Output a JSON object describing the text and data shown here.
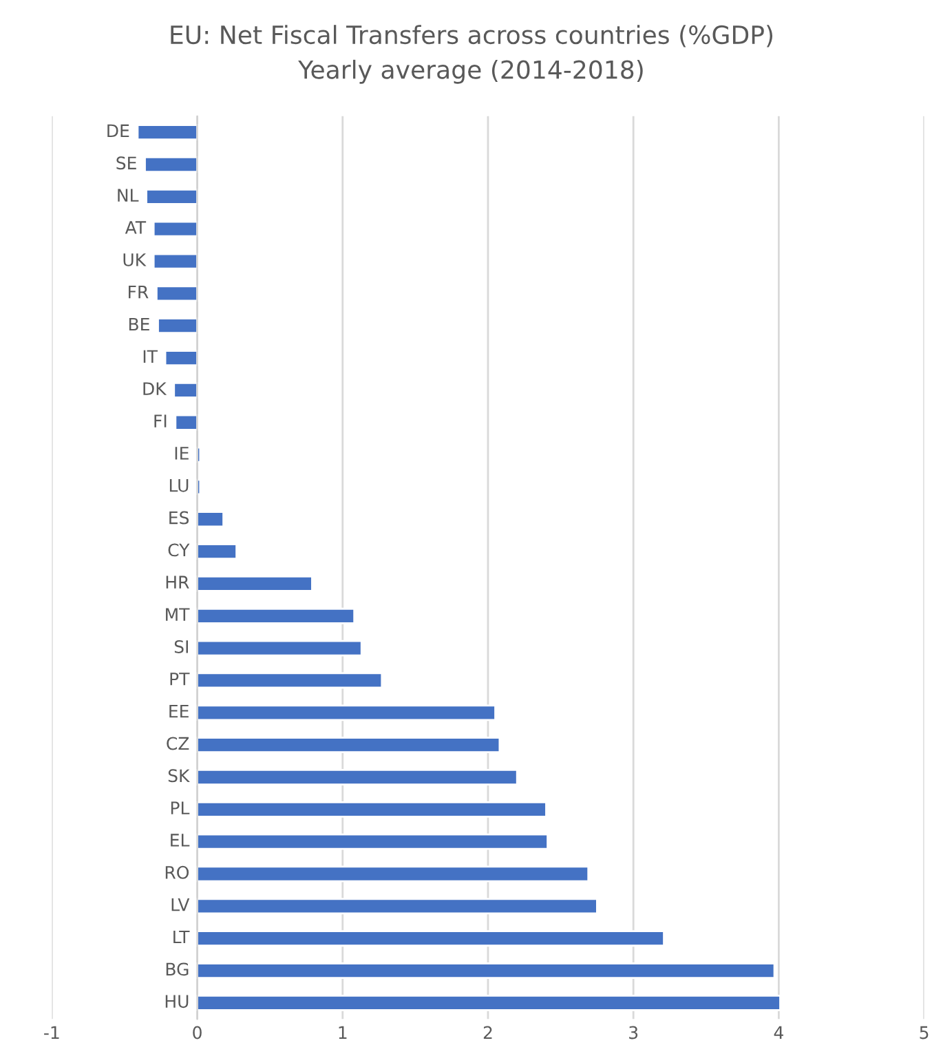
{
  "chart_data": {
    "type": "bar",
    "orientation": "horizontal",
    "title": "EU: Net Fiscal Transfers across countries (%GDP)",
    "subtitle": "Yearly average (2014-2018)",
    "categories": [
      "DE",
      "SE",
      "NL",
      "AT",
      "UK",
      "FR",
      "BE",
      "IT",
      "DK",
      "FI",
      "IE",
      "LU",
      "ES",
      "CY",
      "HR",
      "MT",
      "SI",
      "PT",
      "EE",
      "CZ",
      "SK",
      "PL",
      "EL",
      "RO",
      "LV",
      "LT",
      "BG",
      "HU"
    ],
    "values": [
      -0.41,
      -0.36,
      -0.35,
      -0.3,
      -0.3,
      -0.28,
      -0.27,
      -0.22,
      -0.16,
      -0.15,
      0.02,
      0.02,
      0.18,
      0.27,
      0.79,
      1.08,
      1.13,
      1.27,
      2.05,
      2.08,
      2.2,
      2.4,
      2.41,
      2.69,
      2.75,
      3.21,
      3.97,
      4.01
    ],
    "color": "#4472c4",
    "xlim": [
      -1,
      5
    ],
    "xticks": [
      -1,
      0,
      1,
      2,
      3,
      4,
      5
    ],
    "grid": "x"
  }
}
